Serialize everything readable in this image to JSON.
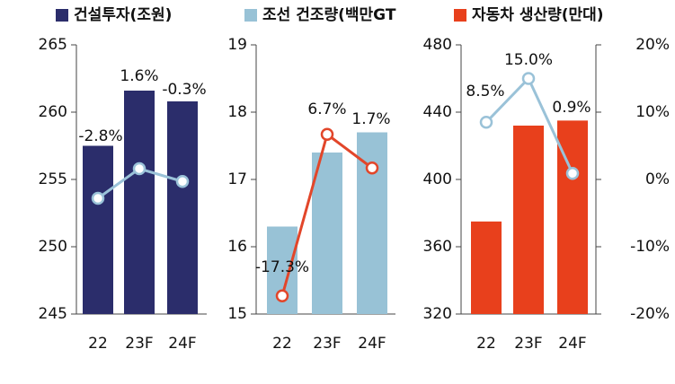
{
  "chart_data": [
    {
      "type": "bar",
      "categories": [
        "22",
        "23F",
        "24F"
      ],
      "series": [
        {
          "name": "건설투자(조원)",
          "type": "bar",
          "color": "#2b2d6b",
          "values": [
            257.5,
            261.6,
            260.8
          ]
        },
        {
          "type": "line",
          "axis": "y2",
          "color": "#9ac2d8",
          "values": [
            -2.8,
            1.6,
            -0.3
          ],
          "value_labels": [
            "-2.8%",
            "1.6%",
            "-0.3%"
          ]
        }
      ],
      "ylim": [
        245,
        265
      ],
      "yticks": [
        245,
        250,
        255,
        260,
        265
      ],
      "y2lim": [
        -20,
        20
      ]
    },
    {
      "type": "bar",
      "categories": [
        "22",
        "23F",
        "24F"
      ],
      "series": [
        {
          "name": "조선 건조량(백만GT",
          "type": "bar",
          "color": "#98c2d6",
          "values": [
            16.3,
            17.4,
            17.7
          ]
        },
        {
          "type": "line",
          "axis": "y2",
          "color": "#e2462a",
          "values": [
            -17.3,
            6.7,
            1.7
          ],
          "value_labels": [
            "-17.3%",
            "6.7%",
            "1.7%"
          ]
        }
      ],
      "ylim": [
        15,
        19
      ],
      "yticks": [
        15,
        16,
        17,
        18,
        19
      ],
      "y2lim": [
        -20,
        20
      ]
    },
    {
      "type": "bar",
      "categories": [
        "22",
        "23F",
        "24F"
      ],
      "series": [
        {
          "name": "자동차 생산량(만대)",
          "type": "bar",
          "color": "#e8401c",
          "values": [
            375,
            432,
            435
          ]
        },
        {
          "type": "line",
          "axis": "y2",
          "color": "#9ac2d8",
          "values": [
            8.5,
            15.0,
            0.9
          ],
          "value_labels": [
            "8.5%",
            "15.0%",
            "0.9%"
          ]
        }
      ],
      "ylim": [
        320,
        480
      ],
      "yticks": [
        320,
        360,
        400,
        440,
        480
      ],
      "y2lim": [
        -20,
        20
      ],
      "y2ticks": [
        {
          "value": -20,
          "label": "-20%"
        },
        {
          "value": -10,
          "label": "-10%"
        },
        {
          "value": 0,
          "label": "0%"
        },
        {
          "value": 10,
          "label": "10%"
        },
        {
          "value": 20,
          "label": "20%"
        }
      ]
    }
  ]
}
